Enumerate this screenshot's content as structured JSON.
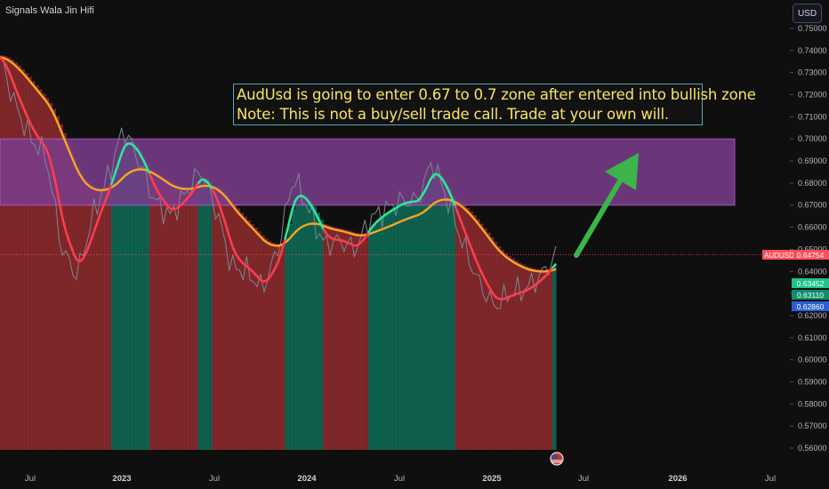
{
  "header": {
    "author": "Signals Wala Jin Hifi",
    "currency_button": "USD"
  },
  "annotation": {
    "line1": "AudUsd is going to enter 0.67 to 0.7 zone after entered into bullish zone",
    "line2": "Note: This is not a buy/sell trade call. Trade at your own will."
  },
  "price_axis": {
    "ticks": [
      "0.75000",
      "0.74000",
      "0.73000",
      "0.72000",
      "0.71000",
      "0.70000",
      "0.69000",
      "0.68000",
      "0.67000",
      "0.66000",
      "0.65000",
      "0.64000",
      "0.63000",
      "0.62000",
      "0.61000",
      "0.60000",
      "0.59000",
      "0.58000",
      "0.57000",
      "0.56000"
    ]
  },
  "price_labels": {
    "symbol": "AUDUSD",
    "last_price": "0.64754",
    "ma_green": "0.63452",
    "ma_teal": "0.63110",
    "ma_blue": "0.62860"
  },
  "time_axis": {
    "labels": [
      "Jul",
      "2023",
      "Jul",
      "2024",
      "Jul",
      "2025",
      "Jul",
      "2026",
      "Jul"
    ]
  },
  "colors": {
    "background": "#0f0f0f",
    "bear_fill": "#8e2a2e",
    "bull_fill": "#0e6b57",
    "zone_fill": "#7a3d8c",
    "fast_ma": "#ff3d4f",
    "fast_ma_bull": "#2ee89a",
    "slow_ma": "#f5a623",
    "slow_ma_blue": "#2d7ff9",
    "arrow": "#3bb54a",
    "annotation_text": "#f7e463"
  },
  "icons": {
    "flag": "us-flag-icon",
    "arrow": "up-right-arrow-icon"
  },
  "chart_data": {
    "type": "line",
    "symbol": "AUDUSD",
    "ylim": [
      0.555,
      0.755
    ],
    "target_zone": [
      0.67,
      0.7
    ],
    "x": [
      "2022-05",
      "2022-06",
      "2022-07",
      "2022-08",
      "2022-09",
      "2022-10",
      "2022-11",
      "2022-12",
      "2023-01",
      "2023-02",
      "2023-03",
      "2023-04",
      "2023-05",
      "2023-06",
      "2023-07",
      "2023-08",
      "2023-09",
      "2023-10",
      "2023-11",
      "2023-12",
      "2024-01",
      "2024-02",
      "2024-03",
      "2024-04",
      "2024-05",
      "2024-06",
      "2024-07",
      "2024-08",
      "2024-09",
      "2024-10",
      "2024-11",
      "2024-12",
      "2025-01",
      "2025-02",
      "2025-03",
      "2025-04",
      "2025-05"
    ],
    "series": [
      {
        "values": [
          0.737,
          0.715,
          0.7,
          0.692,
          0.65,
          0.638,
          0.665,
          0.683,
          0.705,
          0.69,
          0.672,
          0.665,
          0.675,
          0.686,
          0.668,
          0.642,
          0.64,
          0.632,
          0.65,
          0.683,
          0.668,
          0.652,
          0.654,
          0.65,
          0.664,
          0.668,
          0.672,
          0.672,
          0.69,
          0.672,
          0.652,
          0.635,
          0.624,
          0.63,
          0.632,
          0.638,
          0.647
        ]
      }
    ]
  }
}
